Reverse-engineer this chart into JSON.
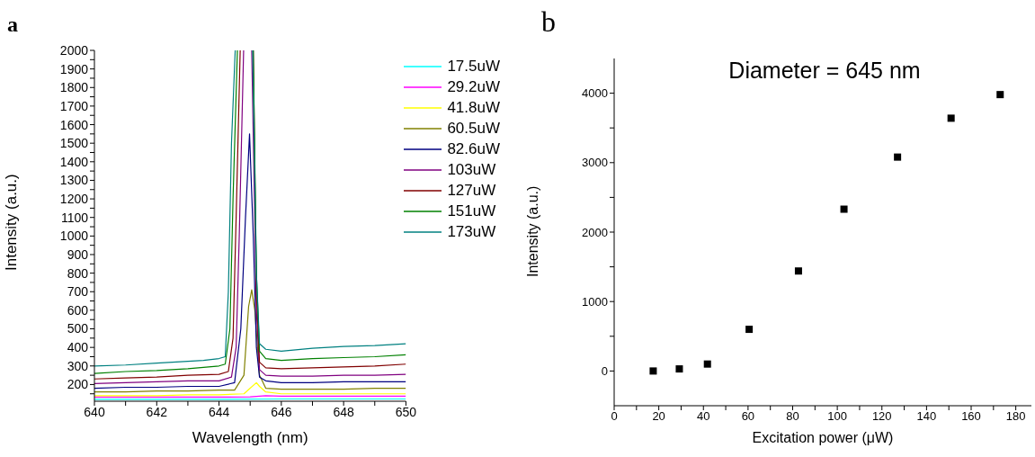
{
  "chart_data": [
    {
      "type": "line",
      "title": "a",
      "xlabel": "Wavelength (nm)",
      "ylabel": "Intensity (a.u.)",
      "xlim": [
        640,
        650
      ],
      "ylim": [
        110,
        2000
      ],
      "xticks": [
        640,
        {
          "value": 641,
          "label": null
        },
        642,
        {
          "value": 643,
          "label": null
        },
        644,
        {
          "value": 645,
          "label": null
        },
        646,
        {
          "value": 647,
          "label": null
        },
        648,
        {
          "value": 649,
          "label": null
        },
        650
      ],
      "yticks": [
        {
          "value": 150,
          "label": null
        },
        200,
        {
          "value": 250,
          "label": null
        },
        300,
        {
          "value": 350,
          "label": null
        },
        400,
        {
          "value": 450,
          "label": null
        },
        500,
        {
          "value": 550,
          "label": null
        },
        600,
        {
          "value": 650,
          "label": null
        },
        700,
        {
          "value": 750,
          "label": null
        },
        800,
        {
          "value": 850,
          "label": null
        },
        900,
        {
          "value": 950,
          "label": null
        },
        1000,
        {
          "value": 1050,
          "label": null
        },
        1100,
        {
          "value": 1150,
          "label": null
        },
        1200,
        {
          "value": 1250,
          "label": null
        },
        1300,
        {
          "value": 1350,
          "label": null
        },
        1400,
        {
          "value": 1450,
          "label": null
        },
        1500,
        {
          "value": 1550,
          "label": null
        },
        1600,
        {
          "value": 1650,
          "label": null
        },
        1700,
        {
          "value": 1750,
          "label": null
        },
        1800,
        {
          "value": 1850,
          "label": null
        },
        1900,
        {
          "value": 1950,
          "label": null
        },
        2000
      ],
      "grid": false,
      "legend": "top right",
      "marker": "none",
      "line_style": "solid",
      "series": [
        {
          "name": "17.5uW",
          "color": "#00ffff",
          "x": [
            640,
            642,
            644,
            646,
            648,
            650
          ],
          "values": [
            120,
            120,
            120,
            122,
            122,
            122
          ]
        },
        {
          "name": "29.2uW",
          "color": "#ff00ff",
          "x": [
            640,
            642,
            644,
            645,
            645.5,
            646,
            648,
            650
          ],
          "values": [
            132,
            132,
            132,
            134,
            140,
            137,
            137,
            137
          ]
        },
        {
          "name": "41.8uW",
          "color": "#ffff00",
          "x": [
            640,
            641,
            642,
            643,
            644,
            644.8,
            645.0,
            645.2,
            645.3,
            645.5,
            646,
            647,
            648,
            649,
            650
          ],
          "values": [
            140,
            140,
            140,
            145,
            145,
            150,
            180,
            210,
            190,
            160,
            150,
            150,
            150,
            150,
            150
          ]
        },
        {
          "name": "60.5uW",
          "color": "#808000",
          "x": [
            640,
            641,
            642,
            643,
            644,
            644.5,
            644.8,
            644.95,
            645.05,
            645.15,
            645.3,
            645.5,
            646,
            647,
            648,
            649,
            650
          ],
          "values": [
            160,
            160,
            165,
            165,
            170,
            170,
            250,
            620,
            710,
            600,
            250,
            180,
            175,
            175,
            175,
            180,
            180
          ]
        },
        {
          "name": "82.6uW",
          "color": "#000080",
          "x": [
            640,
            641,
            642,
            643,
            644,
            644.5,
            644.7,
            644.85,
            644.98,
            645.1,
            645.2,
            645.3,
            645.5,
            646,
            647,
            648,
            649,
            650
          ],
          "values": [
            180,
            185,
            185,
            190,
            190,
            210,
            500,
            1100,
            1550,
            1000,
            400,
            240,
            220,
            210,
            210,
            215,
            215,
            215
          ]
        },
        {
          "name": "103uW",
          "color": "#800080",
          "x": [
            640,
            641,
            642,
            643,
            644,
            644.4,
            644.55,
            644.65,
            644.79,
            644.9,
            645.05,
            645.2,
            645.3,
            645.5,
            646,
            647,
            648,
            649,
            650
          ],
          "values": [
            205,
            210,
            215,
            220,
            220,
            240,
            400,
            1000,
            2000,
            null,
            2000,
            600,
            280,
            250,
            245,
            245,
            250,
            250,
            255
          ]
        },
        {
          "name": "127uW",
          "color": "#800000",
          "x": [
            640,
            641,
            642,
            643,
            644,
            644.3,
            644.45,
            644.55,
            644.68,
            644.85,
            645.1,
            645.2,
            645.3,
            645.5,
            646,
            647,
            648,
            649,
            650
          ],
          "values": [
            230,
            235,
            240,
            250,
            255,
            270,
            450,
            1100,
            2000,
            null,
            2000,
            700,
            320,
            290,
            285,
            290,
            295,
            300,
            310
          ]
        },
        {
          "name": "151uW",
          "color": "#008000",
          "x": [
            640,
            641,
            642,
            643,
            644,
            644.2,
            644.35,
            644.45,
            644.59,
            644.8,
            645.1,
            645.2,
            645.3,
            645.5,
            646,
            647,
            648,
            649,
            650
          ],
          "values": [
            260,
            270,
            275,
            285,
            300,
            310,
            500,
            1200,
            2000,
            null,
            2000,
            800,
            380,
            340,
            330,
            340,
            345,
            350,
            360
          ]
        },
        {
          "name": "173uW",
          "color": "#008080",
          "x": [
            640,
            641,
            642,
            643,
            643.5,
            644,
            644.2,
            644.3,
            644.4,
            644.52,
            644.8,
            645.08,
            645.2,
            645.3,
            645.5,
            646,
            647,
            648,
            649,
            650
          ],
          "values": [
            300,
            305,
            315,
            325,
            330,
            340,
            350,
            700,
            1500,
            2000,
            null,
            2000,
            800,
            420,
            390,
            380,
            395,
            405,
            410,
            420
          ]
        }
      ]
    },
    {
      "type": "scatter",
      "title": "b",
      "xlabel": "Excitation power (μW)",
      "ylabel": "Intensity (a.u.)",
      "xlim": [
        0,
        187
      ],
      "ylim": [
        -500,
        4500
      ],
      "xticks": [
        0,
        {
          "value": 10,
          "label": null
        },
        20,
        {
          "value": 30,
          "label": null
        },
        40,
        {
          "value": 50,
          "label": null
        },
        60,
        {
          "value": 70,
          "label": null
        },
        80,
        {
          "value": 90,
          "label": null
        },
        100,
        {
          "value": 110,
          "label": null
        },
        120,
        {
          "value": 130,
          "label": null
        },
        140,
        {
          "value": 150,
          "label": null
        },
        160,
        {
          "value": 170,
          "label": null
        },
        180
      ],
      "yticks": [
        0,
        {
          "value": 500,
          "label": null
        },
        1000,
        {
          "value": 1500,
          "label": null
        },
        2000,
        {
          "value": 2500,
          "label": null
        },
        3000,
        {
          "value": 3500,
          "label": null
        },
        4000
      ],
      "grid": false,
      "marker": "square",
      "annotations": [
        "Diameter = 645 nm"
      ],
      "series": [
        {
          "color": "#000000",
          "x": [
            17.5,
            29.2,
            41.8,
            60.5,
            82.6,
            103,
            127,
            151,
            173
          ],
          "values": [
            0,
            30,
            100,
            600,
            1440,
            2330,
            3080,
            3640,
            3980
          ]
        }
      ]
    }
  ]
}
